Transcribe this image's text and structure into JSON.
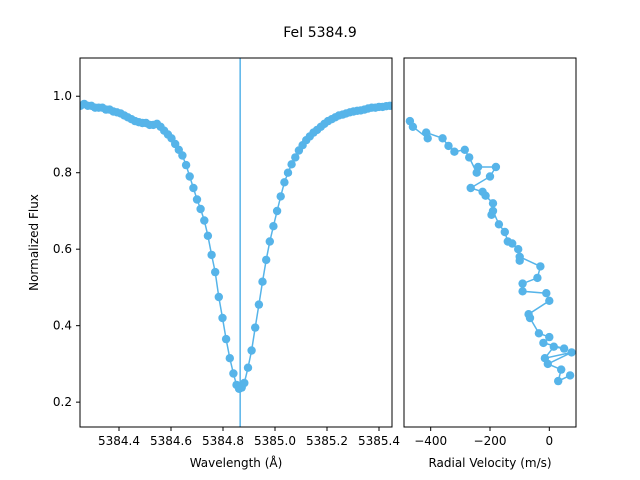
{
  "title": "FeI 5384.9",
  "colors": {
    "series": "#56B4E9",
    "marker_line": "#56B4E9"
  },
  "chart_data": [
    {
      "type": "line",
      "markers": true,
      "title": "FeI 5384.9",
      "xlabel": "Wavelength (Å)",
      "ylabel": "Normalized Flux",
      "xlim": [
        5384.25,
        5385.45
      ],
      "ylim": [
        0.135,
        1.1
      ],
      "xticks": [
        5384.4,
        5384.6,
        5384.8,
        5385.0,
        5385.2,
        5385.4
      ],
      "xtick_labels": [
        "5384.4",
        "5384.6",
        "5384.8",
        "5385.0",
        "5385.2",
        "5385.4"
      ],
      "yticks": [
        0.2,
        0.4,
        0.6,
        0.8,
        1.0
      ],
      "ytick_labels": [
        "0.2",
        "0.4",
        "0.6",
        "0.8",
        "1.0"
      ],
      "vline_x": 5384.866,
      "grid": false,
      "x": [
        5384.252,
        5384.266,
        5384.28,
        5384.294,
        5384.308,
        5384.322,
        5384.336,
        5384.35,
        5384.364,
        5384.378,
        5384.392,
        5384.406,
        5384.42,
        5384.434,
        5384.448,
        5384.462,
        5384.476,
        5384.49,
        5384.504,
        5384.518,
        5384.532,
        5384.546,
        5384.56,
        5384.574,
        5384.588,
        5384.602,
        5384.616,
        5384.63,
        5384.644,
        5384.658,
        5384.672,
        5384.686,
        5384.7,
        5384.714,
        5384.728,
        5384.742,
        5384.756,
        5384.77,
        5384.784,
        5384.798,
        5384.812,
        5384.826,
        5384.84,
        5384.852,
        5384.862,
        5384.872,
        5384.882,
        5384.896,
        5384.91,
        5384.924,
        5384.938,
        5384.952,
        5384.966,
        5384.98,
        5384.994,
        5385.008,
        5385.022,
        5385.036,
        5385.05,
        5385.064,
        5385.078,
        5385.092,
        5385.106,
        5385.12,
        5385.134,
        5385.148,
        5385.162,
        5385.176,
        5385.19,
        5385.204,
        5385.218,
        5385.232,
        5385.246,
        5385.26,
        5385.274,
        5385.288,
        5385.302,
        5385.316,
        5385.33,
        5385.344,
        5385.358,
        5385.372,
        5385.386,
        5385.4,
        5385.414,
        5385.428,
        5385.442
      ],
      "y": [
        0.975,
        0.98,
        0.975,
        0.975,
        0.97,
        0.97,
        0.97,
        0.965,
        0.965,
        0.96,
        0.958,
        0.955,
        0.95,
        0.945,
        0.94,
        0.935,
        0.932,
        0.93,
        0.93,
        0.925,
        0.925,
        0.928,
        0.92,
        0.91,
        0.9,
        0.89,
        0.875,
        0.86,
        0.845,
        0.82,
        0.79,
        0.76,
        0.73,
        0.705,
        0.675,
        0.635,
        0.585,
        0.54,
        0.475,
        0.42,
        0.365,
        0.315,
        0.275,
        0.245,
        0.235,
        0.238,
        0.25,
        0.29,
        0.335,
        0.395,
        0.455,
        0.515,
        0.572,
        0.62,
        0.66,
        0.7,
        0.738,
        0.775,
        0.8,
        0.822,
        0.84,
        0.858,
        0.872,
        0.885,
        0.895,
        0.905,
        0.912,
        0.92,
        0.928,
        0.935,
        0.94,
        0.945,
        0.95,
        0.952,
        0.955,
        0.958,
        0.96,
        0.962,
        0.963,
        0.965,
        0.968,
        0.97,
        0.97,
        0.972,
        0.972,
        0.974,
        0.975
      ]
    },
    {
      "type": "line",
      "markers": true,
      "xlabel": "Radial Velocity (m/s)",
      "ylabel": "",
      "xlim": [
        -490,
        90
      ],
      "ylim": [
        0.135,
        1.1
      ],
      "xticks": [
        -400,
        -200,
        0
      ],
      "xtick_labels": [
        "−400",
        "−200",
        "0"
      ],
      "yticks": [],
      "grid": false,
      "x": [
        -470,
        -460,
        -410,
        -415,
        -360,
        -340,
        -320,
        -285,
        -270,
        -245,
        -240,
        -180,
        -200,
        -265,
        -225,
        -215,
        -190,
        -195,
        -190,
        -170,
        -150,
        -140,
        -125,
        -105,
        -100,
        -100,
        -30,
        -40,
        -90,
        -90,
        -10,
        0,
        -70,
        -65,
        -35,
        0,
        -20,
        50,
        15,
        -15,
        75,
        -5,
        40,
        30,
        70
      ],
      "y": [
        0.935,
        0.92,
        0.89,
        0.905,
        0.89,
        0.87,
        0.855,
        0.86,
        0.84,
        0.8,
        0.815,
        0.815,
        0.79,
        0.76,
        0.75,
        0.74,
        0.72,
        0.69,
        0.7,
        0.665,
        0.645,
        0.62,
        0.615,
        0.6,
        0.57,
        0.58,
        0.555,
        0.525,
        0.51,
        0.49,
        0.485,
        0.465,
        0.43,
        0.42,
        0.38,
        0.37,
        0.355,
        0.34,
        0.345,
        0.315,
        0.33,
        0.3,
        0.285,
        0.255,
        0.27
      ]
    }
  ]
}
